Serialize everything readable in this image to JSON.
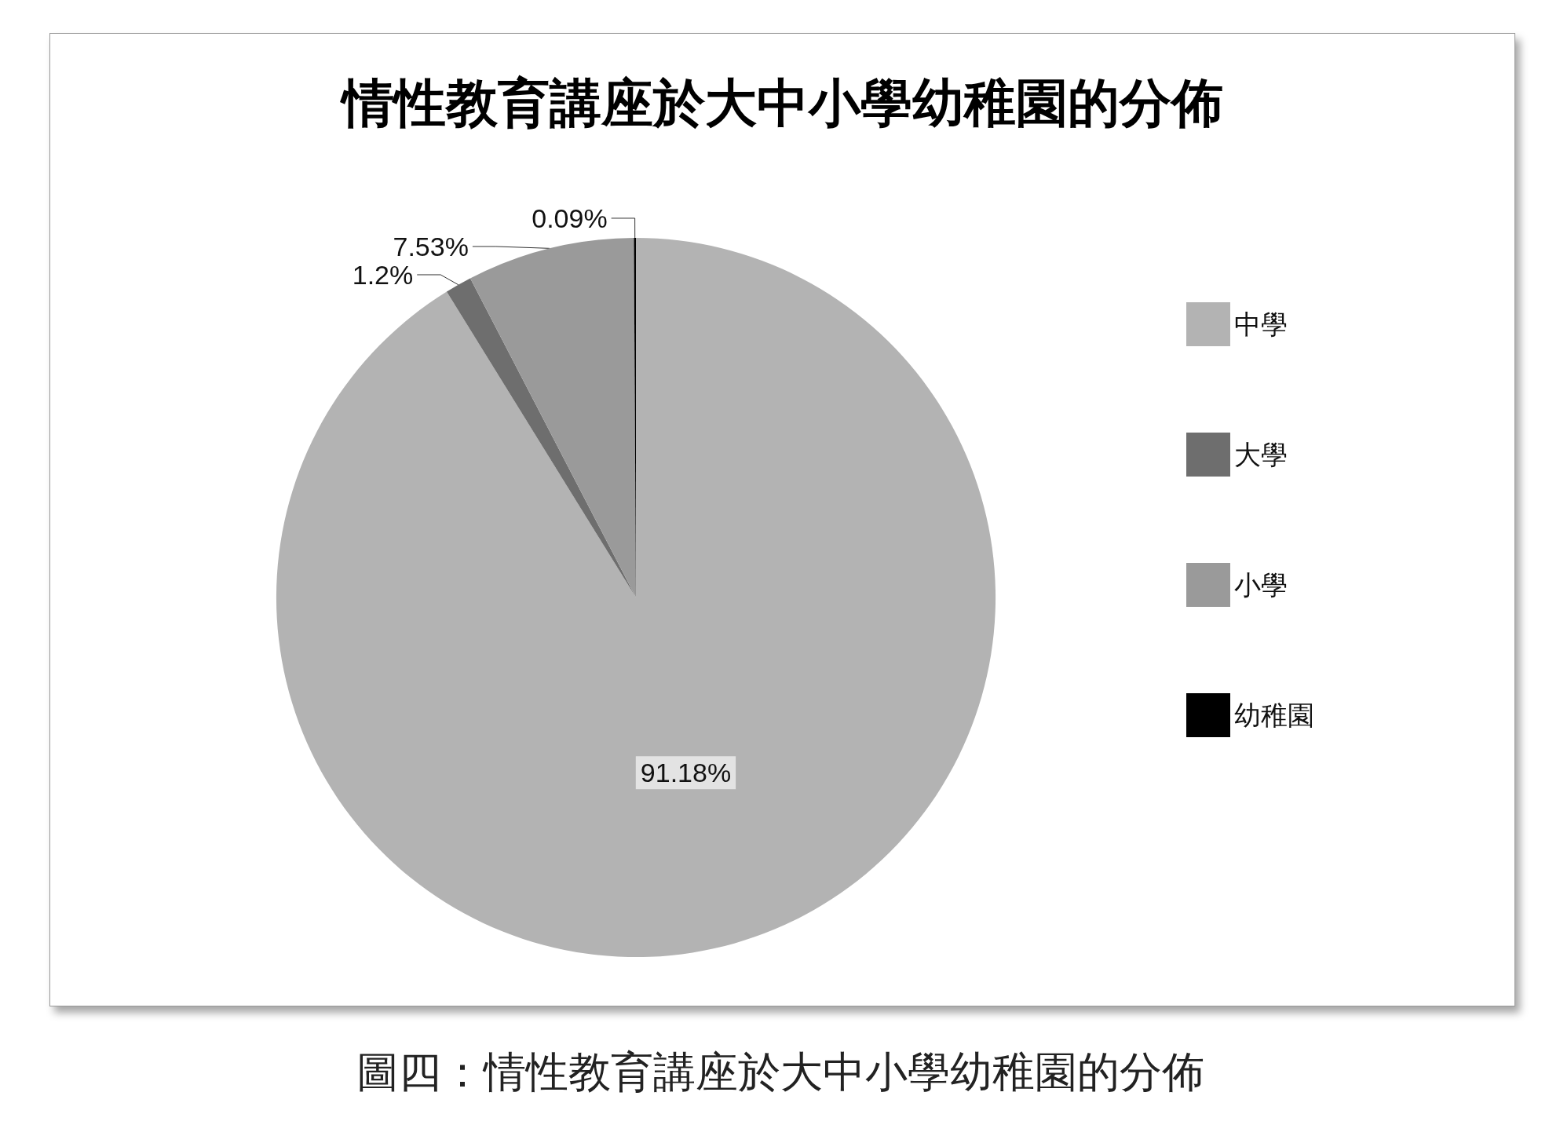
{
  "chart_data": {
    "type": "pie",
    "title": "情性教育講座於大中小學幼稚園的分佈",
    "categories": [
      "中學",
      "大學",
      "小學",
      "幼稚園"
    ],
    "values": [
      91.18,
      1.2,
      7.53,
      0.09
    ],
    "value_labels": [
      "91.18%",
      "1.2%",
      "7.53%",
      "0.09%"
    ],
    "colors": [
      "#b3b3b3",
      "#6e6e6e",
      "#9a9a9a",
      "#000000"
    ],
    "legend": "right",
    "annotations": [
      "圖四：情性教育講座於大中小學幼稚園的分佈"
    ]
  }
}
